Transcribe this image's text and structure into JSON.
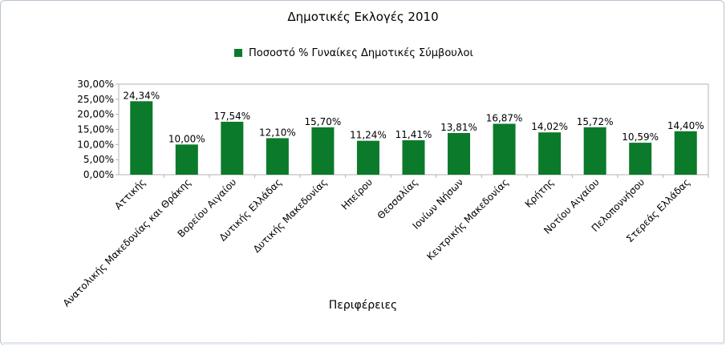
{
  "chart_data": {
    "type": "bar",
    "title": "Δημοτικές Εκλογές 2010",
    "xlabel": "Περιφέρειες",
    "ylabel": "",
    "ylim": [
      0,
      30
    ],
    "y_ticks": [
      0,
      5,
      10,
      15,
      20,
      25,
      30
    ],
    "y_tick_labels": [
      "0,00%",
      "5,00%",
      "10,00%",
      "15,00%",
      "20,00%",
      "25,00%",
      "30,00%"
    ],
    "grid": false,
    "legend_position": "top",
    "categories": [
      "Αττικής",
      "Ανατολικής Μακεδονίας και Θράκης",
      "Βορείου Αιγαίου",
      "Δυτικής Ελλάδας",
      "Δυτικής Μακεδονίας",
      "Ηπείρου",
      "Θεσσαλίας",
      "Ιονίων Νήσων",
      "Κεντρικής Μακεδονίας",
      "Κρήτης",
      "Νοτίου Αιγαίου",
      "Πελοποννήσου",
      "Στερεάς Ελλάδας"
    ],
    "series": [
      {
        "name": "Ποσοστό % Γυναίκες Δημοτικές Σύμβουλοι",
        "color": "#0b7a2a",
        "values": [
          24.34,
          10.0,
          17.54,
          12.1,
          15.7,
          11.24,
          11.41,
          13.81,
          16.87,
          14.02,
          15.72,
          10.59,
          14.4
        ],
        "labels": [
          "24,34%",
          "10,00%",
          "17,54%",
          "12,10%",
          "15,70%",
          "11,24%",
          "11,41%",
          "13,81%",
          "16,87%",
          "14,02%",
          "15,72%",
          "10,59%",
          "14,40%"
        ]
      }
    ]
  }
}
